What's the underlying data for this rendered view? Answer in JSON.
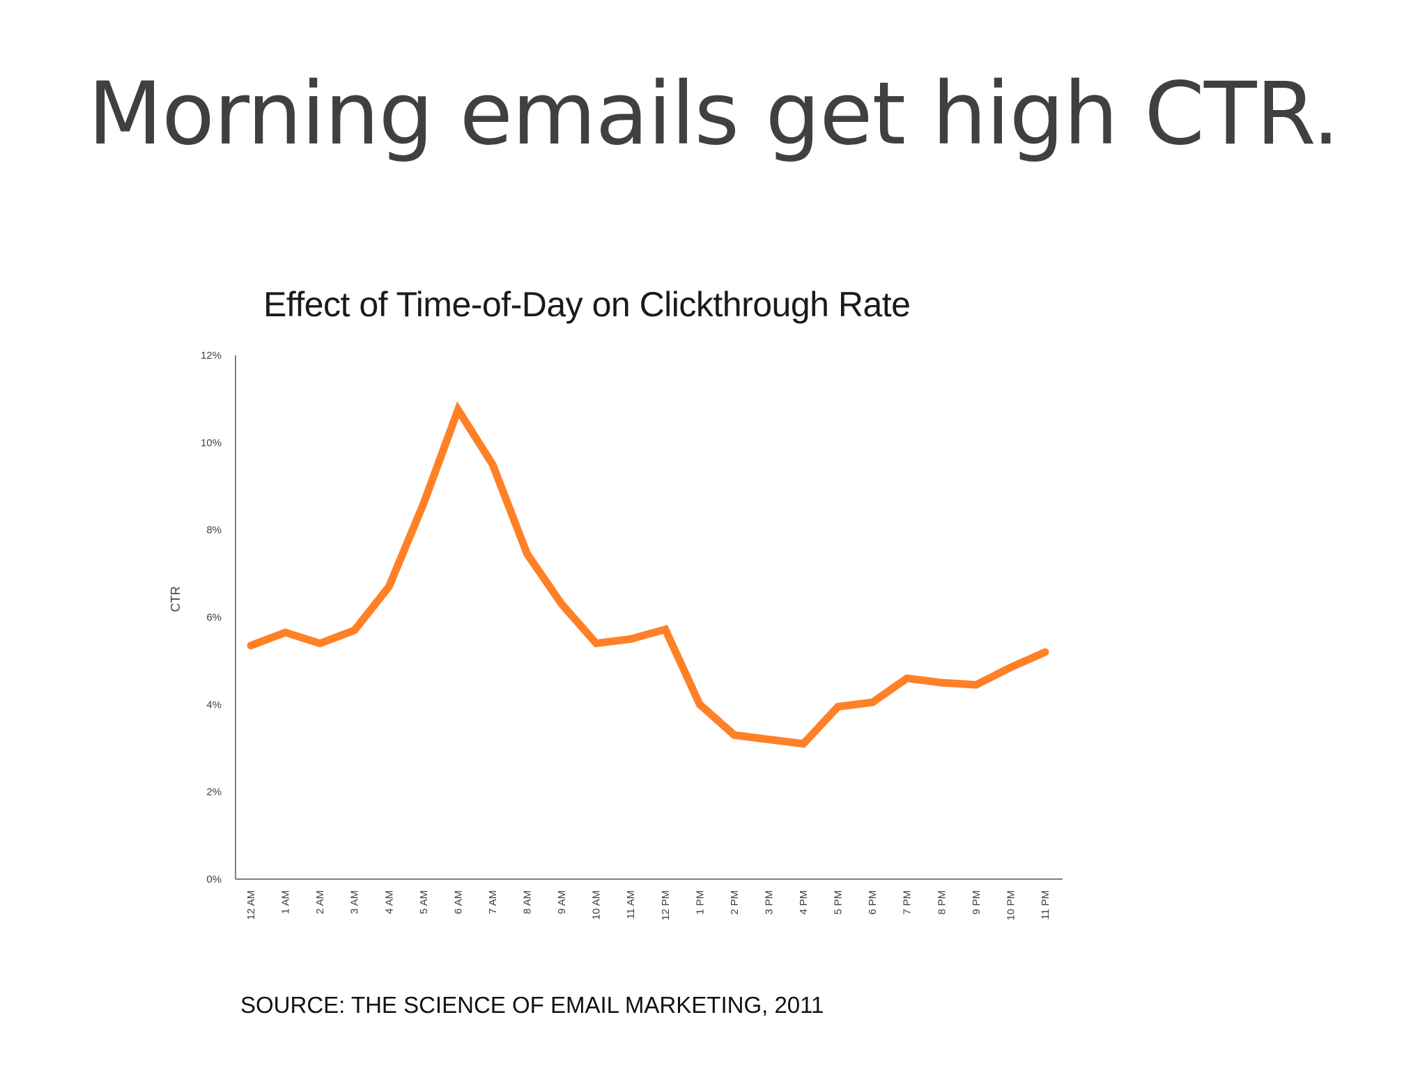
{
  "slide": {
    "title": "Morning emails get high CTR.",
    "source": "SOURCE: THE SCIENCE OF EMAIL MARKETING, 2011"
  },
  "colors": {
    "line": "#FF8026",
    "axis": "#808080",
    "text": "#404040"
  },
  "chart_data": {
    "type": "line",
    "title": "Effect of Time-of-Day on Clickthrough Rate",
    "xlabel": "",
    "ylabel": "CTR",
    "ylim": [
      0,
      12
    ],
    "yticks": [
      "0%",
      "2%",
      "4%",
      "6%",
      "8%",
      "10%",
      "12%"
    ],
    "ytick_values": [
      0,
      2,
      4,
      6,
      8,
      10,
      12
    ],
    "grid": false,
    "legend": "none",
    "categories": [
      "12 AM",
      "1 AM",
      "2 AM",
      "3 AM",
      "4 AM",
      "5 AM",
      "6 AM",
      "7 AM",
      "8 AM",
      "9 AM",
      "10 AM",
      "11 AM",
      "12 PM",
      "1 PM",
      "2 PM",
      "3 PM",
      "4 PM",
      "5 PM",
      "6 PM",
      "7 PM",
      "8 PM",
      "9 PM",
      "10 PM",
      "11 PM"
    ],
    "series": [
      {
        "values": [
          5.35,
          5.65,
          5.4,
          5.7,
          6.7,
          8.6,
          10.75,
          9.5,
          7.45,
          6.3,
          5.4,
          5.5,
          5.72,
          4.0,
          3.3,
          3.2,
          3.1,
          3.95,
          4.05,
          4.6,
          4.5,
          4.45,
          4.85,
          5.2
        ]
      }
    ]
  }
}
